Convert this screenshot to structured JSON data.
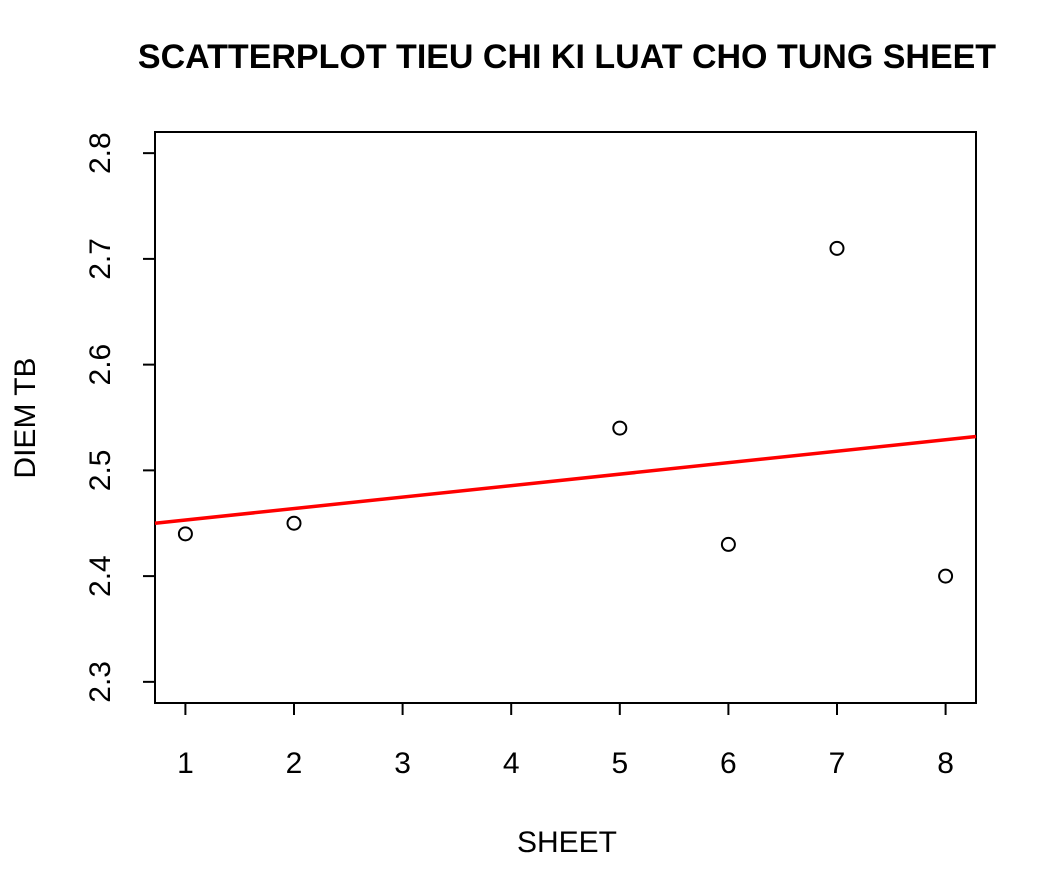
{
  "chart_data": {
    "type": "scatter",
    "title": "SCATTERPLOT TIEU CHI KI LUAT CHO TUNG SHEET",
    "xlabel": "SHEET",
    "ylabel": "DIEM TB",
    "xlim": [
      0.72,
      8.28
    ],
    "ylim": [
      2.28,
      2.82
    ],
    "x_ticks": [
      1,
      2,
      3,
      4,
      5,
      6,
      7,
      8
    ],
    "y_ticks": [
      2.3,
      2.4,
      2.5,
      2.6,
      2.7,
      2.8
    ],
    "points": [
      {
        "x": 1,
        "y": 2.44
      },
      {
        "x": 2,
        "y": 2.45
      },
      {
        "x": 5,
        "y": 2.54
      },
      {
        "x": 6,
        "y": 2.43
      },
      {
        "x": 7,
        "y": 2.71
      },
      {
        "x": 8,
        "y": 2.4
      }
    ],
    "regression_line": {
      "x": [
        0.72,
        8.28
      ],
      "y": [
        2.45,
        2.532
      ],
      "color": "#ff0000"
    },
    "point_color": "#000000",
    "grid": false,
    "legend": "none"
  }
}
